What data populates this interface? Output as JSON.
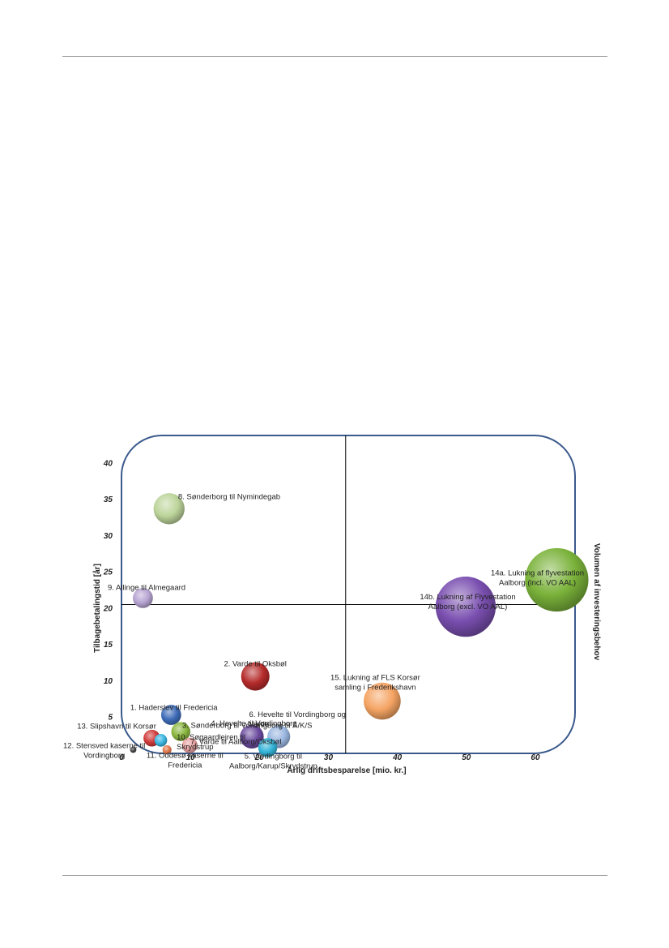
{
  "chart_data": {
    "type": "bubble",
    "xlabel": "Årlig driftsbesparelse [mio. kr.]",
    "ylabel": "Tilbagebetalingstid [år]",
    "size_label": "Volumen af investeringsbehov",
    "xlim": [
      0,
      62
    ],
    "ylim": [
      0,
      42
    ],
    "x_ticks": [
      0,
      10,
      20,
      30,
      40,
      50,
      60
    ],
    "y_ticks": [
      5,
      10,
      15,
      20,
      25,
      30,
      35,
      40
    ],
    "quadrant_lines": {
      "x": 32.5,
      "y": 20.5
    },
    "points": [
      {
        "label": [
          "1. Haderslev til Fredericia"
        ],
        "x": 7.2,
        "y": 5.3,
        "size": 0.5,
        "color": "#3e6cb8",
        "anchor": "middle",
        "lx": 7.6,
        "ly": 6.0
      },
      {
        "label": [
          "2. Varde til Oksbøl"
        ],
        "x": 19.4,
        "y": 10.6,
        "size": 1.0,
        "color": "#b52b2b",
        "anchor": "middle",
        "lx": 19.4,
        "ly": 12.0
      },
      {
        "label": [
          "3. Sønderborg til Vordingborg til Å/K/S"
        ],
        "x": 8.6,
        "y": 3.0,
        "size": 0.45,
        "color": "#8bb73f",
        "anchor": "start",
        "lx": 8.8,
        "ly": 3.5
      },
      {
        "label": [
          "4. Hevelte til Vordingborg"
        ],
        "x": 18.9,
        "y": 2.3,
        "size": 0.7,
        "color": "#6a4a9e",
        "anchor": "middle",
        "lx": 19.2,
        "ly": 3.8
      },
      {
        "label": [
          "5. Vordingborg til",
          "Aalborg/Karup/Skrydstrup"
        ],
        "x": 21.2,
        "y": 0.8,
        "size": 0.45,
        "color": "#33b4d8",
        "anchor": "middle",
        "lx": 22.0,
        "ly": -0.7
      },
      {
        "label": [
          "6. Hevelte til Vordingborg og",
          "Varde"
        ],
        "x": 22.8,
        "y": 2.3,
        "size": 0.65,
        "color": "#9ab6e0",
        "anchor": "start",
        "lx": 18.5,
        "ly": 5.0
      },
      {
        "label": [
          "7. Varde til Aalborg/Oksbøl"
        ],
        "x": 9.9,
        "y": 1.1,
        "size": 0.3,
        "color": "#e8a0a0",
        "anchor": "start",
        "lx": 10.0,
        "ly": 1.3
      },
      {
        "label": [
          "8. Sønderborg til Nymindegab"
        ],
        "x": 6.9,
        "y": 33.7,
        "size": 1.2,
        "color": "#bcd49a",
        "anchor": "start",
        "lx": 8.2,
        "ly": 35.0
      },
      {
        "label": [
          "9. Allinge til Almegaard"
        ],
        "x": 3.1,
        "y": 21.4,
        "size": 0.5,
        "color": "#b7a4d2",
        "anchor": "start",
        "lx": -2.0,
        "ly": 22.5
      },
      {
        "label": [
          "10. Søgaardlejren til",
          "Skrydstrup"
        ],
        "x": 5.7,
        "y": 1.8,
        "size": 0.2,
        "color": "#39b5e0",
        "anchor": "start",
        "lx": 8.0,
        "ly": 1.9
      },
      {
        "label": [
          "11. Oddesø kaserne til",
          "Fredericia"
        ],
        "x": 6.6,
        "y": 0.5,
        "size": 0.1,
        "color": "#e0784a",
        "anchor": "middle",
        "lx": 9.2,
        "ly": -0.6
      },
      {
        "label": [
          "12. Stensved kaserne til",
          "Vordingborg"
        ],
        "x": 1.7,
        "y": 0.5,
        "size": 0.05,
        "color": "#444444",
        "anchor": "middle",
        "lx": -2.5,
        "ly": 0.7
      },
      {
        "label": [
          "13. Slipshavn til Korsør"
        ],
        "x": 4.4,
        "y": 2.1,
        "size": 0.35,
        "color": "#d03a3a",
        "anchor": "middle",
        "lx": -0.7,
        "ly": 3.4
      },
      {
        "label": [
          "14a. Lukning af flyvestation",
          "Aalborg (incl. VO AAL)"
        ],
        "x": 63.1,
        "y": 23.9,
        "size": 5.0,
        "color": "#7ab23a",
        "anchor": "middle",
        "lx": 60.3,
        "ly": 24.5
      },
      {
        "label": [
          "14b. Lukning af Flyvestation",
          "Aalborg (excl. VO AAL)"
        ],
        "x": 49.9,
        "y": 20.2,
        "size": 4.5,
        "color": "#7a4fb0",
        "anchor": "middle",
        "lx": 50.2,
        "ly": 21.2
      },
      {
        "label": [
          "15. Lukning af FLS Korsør",
          "samling i Frederikshavn"
        ],
        "x": 37.8,
        "y": 7.2,
        "size": 1.7,
        "color": "#f5a463",
        "anchor": "middle",
        "lx": 36.8,
        "ly": 10.1
      }
    ]
  }
}
